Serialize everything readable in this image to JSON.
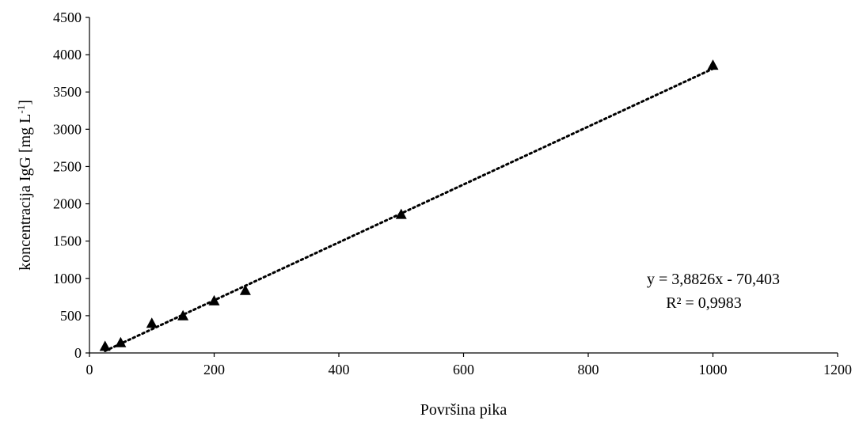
{
  "chart_data": {
    "type": "scatter",
    "title": "",
    "xlabel": "Površina pika",
    "ylabel": {
      "main": "koncentracija IgG [mg L",
      "superscript": "-1",
      "close": "]"
    },
    "xlim": [
      0,
      1200
    ],
    "ylim": [
      0,
      4500
    ],
    "x_ticks": [
      0,
      200,
      400,
      600,
      800,
      1000,
      1200
    ],
    "y_ticks": [
      0,
      500,
      1000,
      1500,
      2000,
      2500,
      3000,
      3500,
      4000,
      4500
    ],
    "grid": false,
    "marker": "triangle",
    "marker_color": "#000000",
    "series": [
      {
        "x": [
          25,
          50,
          100,
          150,
          200,
          250,
          500,
          1000
        ],
        "y": [
          80,
          130,
          390,
          490,
          690,
          830,
          1850,
          3850
        ]
      }
    ],
    "trendline": {
      "style": "dotted",
      "slope": 3.8826,
      "intercept": -70.403,
      "x_range": [
        25,
        1000
      ],
      "equation": "y = 3,8826x - 70,403",
      "r_squared": "R² = 0,9983"
    }
  }
}
